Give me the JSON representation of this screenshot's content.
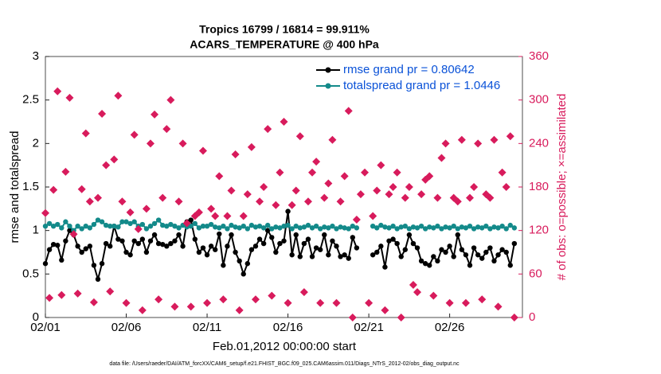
{
  "chart_data": {
    "type": "line",
    "title": "Tropics 16799 / 16814 = 99.911%",
    "subtitle": "ACARS_TEMPERATURE @ 400 hPa",
    "x_label": "Feb.01,2012 00:00:00 start",
    "y_label": "rmse and totalspread",
    "y2_label": "# of obs: o=possible; ×=assimilated",
    "footnote": "data file: /Users/raeder/DAI/ATM_forcXX/CAM6_setup/f.e21.FHIST_BGC.f09_025.CAM6assim.011/Diags_NTrS_2012-02/obs_diag_output.nc",
    "legend": "northeast",
    "xlim": [
      0,
      29.5
    ],
    "xticks": [
      {
        "value": 0,
        "label": "02/01"
      },
      {
        "value": 5,
        "label": "02/06"
      },
      {
        "value": 10,
        "label": "02/11"
      },
      {
        "value": 15,
        "label": "02/16"
      },
      {
        "value": 20,
        "label": "02/21"
      },
      {
        "value": 25,
        "label": "02/26"
      }
    ],
    "ylim": [
      0,
      3
    ],
    "yticks": [
      0,
      0.5,
      1,
      1.5,
      2,
      2.5,
      3
    ],
    "y2lim": [
      0,
      360
    ],
    "y2ticks": [
      0,
      60,
      120,
      180,
      240,
      300,
      360
    ],
    "x": [
      0,
      0.25,
      0.5,
      0.75,
      1,
      1.25,
      1.5,
      1.75,
      2,
      2.25,
      2.5,
      2.75,
      3,
      3.25,
      3.5,
      3.75,
      4,
      4.25,
      4.5,
      4.75,
      5,
      5.25,
      5.5,
      5.75,
      6,
      6.25,
      6.5,
      6.75,
      7,
      7.25,
      7.5,
      7.75,
      8,
      8.25,
      8.5,
      8.75,
      9,
      9.25,
      9.5,
      9.75,
      10,
      10.25,
      10.5,
      10.75,
      11,
      11.25,
      11.5,
      11.75,
      12,
      12.25,
      12.5,
      12.75,
      13,
      13.25,
      13.5,
      13.75,
      14,
      14.25,
      14.5,
      14.75,
      15,
      15.25,
      15.5,
      15.75,
      16,
      16.25,
      16.5,
      16.75,
      17,
      17.25,
      17.5,
      17.75,
      18,
      18.25,
      18.5,
      18.75,
      19,
      19.25,
      19.5,
      19.75,
      20,
      20.25,
      20.5,
      20.75,
      21,
      21.25,
      21.5,
      21.75,
      22,
      22.25,
      22.5,
      22.75,
      23,
      23.25,
      23.5,
      23.75,
      24,
      24.25,
      24.5,
      24.75,
      25,
      25.25,
      25.5,
      25.75,
      26,
      26.25,
      26.5,
      26.75,
      27,
      27.25,
      27.5,
      27.75,
      28,
      28.25,
      28.5,
      28.75,
      29
    ],
    "series": [
      {
        "name": "rmse grand pr = 0.80642",
        "color": "#000000",
        "axis": "y",
        "values": [
          0.62,
          0.78,
          0.84,
          0.83,
          0.66,
          0.88,
          1.0,
          0.95,
          0.82,
          0.75,
          0.79,
          0.82,
          0.6,
          0.44,
          0.62,
          0.85,
          0.82,
          1.05,
          0.9,
          0.88,
          0.75,
          0.72,
          0.88,
          0.85,
          0.9,
          0.75,
          0.88,
          0.95,
          0.85,
          0.84,
          0.82,
          0.85,
          0.88,
          0.95,
          0.82,
          1.1,
          1.12,
          0.9,
          0.75,
          0.8,
          0.72,
          0.82,
          0.78,
          0.96,
          0.6,
          0.82,
          0.95,
          0.75,
          0.65,
          0.5,
          0.62,
          0.78,
          0.82,
          0.9,
          0.85,
          1.0,
          0.92,
          0.75,
          0.85,
          0.88,
          1.22,
          0.72,
          0.95,
          0.7,
          0.85,
          0.9,
          0.7,
          0.8,
          0.78,
          0.95,
          0.72,
          0.88,
          0.82,
          0.7,
          0.72,
          0.68,
          0.92,
          0.8,
          null,
          null,
          null,
          0.72,
          0.75,
          0.82,
          0.58,
          0.88,
          0.9,
          0.85,
          0.7,
          0.78,
          0.95,
          0.85,
          0.8,
          0.65,
          0.62,
          0.6,
          0.7,
          0.65,
          0.78,
          0.75,
          0.82,
          0.7,
          0.95,
          0.78,
          0.72,
          0.6,
          0.8,
          0.72,
          0.68,
          0.75,
          0.8,
          0.65,
          0.72,
          0.78,
          0.75,
          0.6,
          0.85
        ]
      },
      {
        "name": "totalspread grand pr = 1.0446",
        "color": "#138a8a",
        "axis": "y",
        "values": [
          1.05,
          1.08,
          1.05,
          1.07,
          1.03,
          1.1,
          1.05,
          1.0,
          1.05,
          1.02,
          1.05,
          1.03,
          1.07,
          1.12,
          1.1,
          1.06,
          1.05,
          1.05,
          1.04,
          1.1,
          1.1,
          1.08,
          1.1,
          1.05,
          1.07,
          1.02,
          1.05,
          1.08,
          1.12,
          1.06,
          1.05,
          1.07,
          1.05,
          1.03,
          1.06,
          1.04,
          1.05,
          1.08,
          1.03,
          1.05,
          1.05,
          1.07,
          1.04,
          1.03,
          1.05,
          1.02,
          1.06,
          1.04,
          1.03,
          1.05,
          1.02,
          1.06,
          1.04,
          1.05,
          1.03,
          1.06,
          1.02,
          1.04,
          1.03,
          1.05,
          1.06,
          1.02,
          1.05,
          1.03,
          1.04,
          1.06,
          1.03,
          1.05,
          1.02,
          1.04,
          1.03,
          1.05,
          1.02,
          1.04,
          1.03,
          1.02,
          1.05,
          1.03,
          null,
          null,
          null,
          1.05,
          1.03,
          1.06,
          1.04,
          1.03,
          1.05,
          1.02,
          1.04,
          1.05,
          1.02,
          1.04,
          1.03,
          1.05,
          1.02,
          1.04,
          1.03,
          1.05,
          1.02,
          1.04,
          1.03,
          1.05,
          1.02,
          1.04,
          1.03,
          1.05,
          1.02,
          1.04,
          1.03,
          1.05,
          1.02,
          1.04,
          1.03,
          1.05,
          1.02,
          1.06,
          1.03
        ]
      },
      {
        "color": "#d81b5c",
        "axis": "y2",
        "values": [
          144,
          27,
          176,
          312,
          31,
          201,
          303,
          115,
          33,
          177,
          254,
          160,
          21,
          165,
          281,
          210,
          36,
          218,
          306,
          160,
          20,
          145,
          252,
          122,
          10,
          150,
          240,
          280,
          25,
          165,
          260,
          300,
          15,
          160,
          240,
          130,
          15,
          140,
          145,
          230,
          20,
          150,
          140,
          195,
          25,
          140,
          175,
          225,
          10,
          140,
          170,
          235,
          25,
          160,
          180,
          260,
          30,
          155,
          200,
          270,
          20,
          155,
          175,
          250,
          35,
          160,
          200,
          215,
          20,
          165,
          185,
          245,
          20,
          160,
          195,
          285,
          0,
          135,
          170,
          200,
          20,
          140,
          175,
          210,
          10,
          170,
          180,
          200,
          0,
          165,
          180,
          45,
          35,
          170,
          190,
          195,
          30,
          165,
          220,
          240,
          20,
          165,
          160,
          245,
          20,
          165,
          180,
          240,
          25,
          170,
          165,
          245,
          15,
          200,
          180,
          250,
          0
        ]
      }
    ]
  }
}
